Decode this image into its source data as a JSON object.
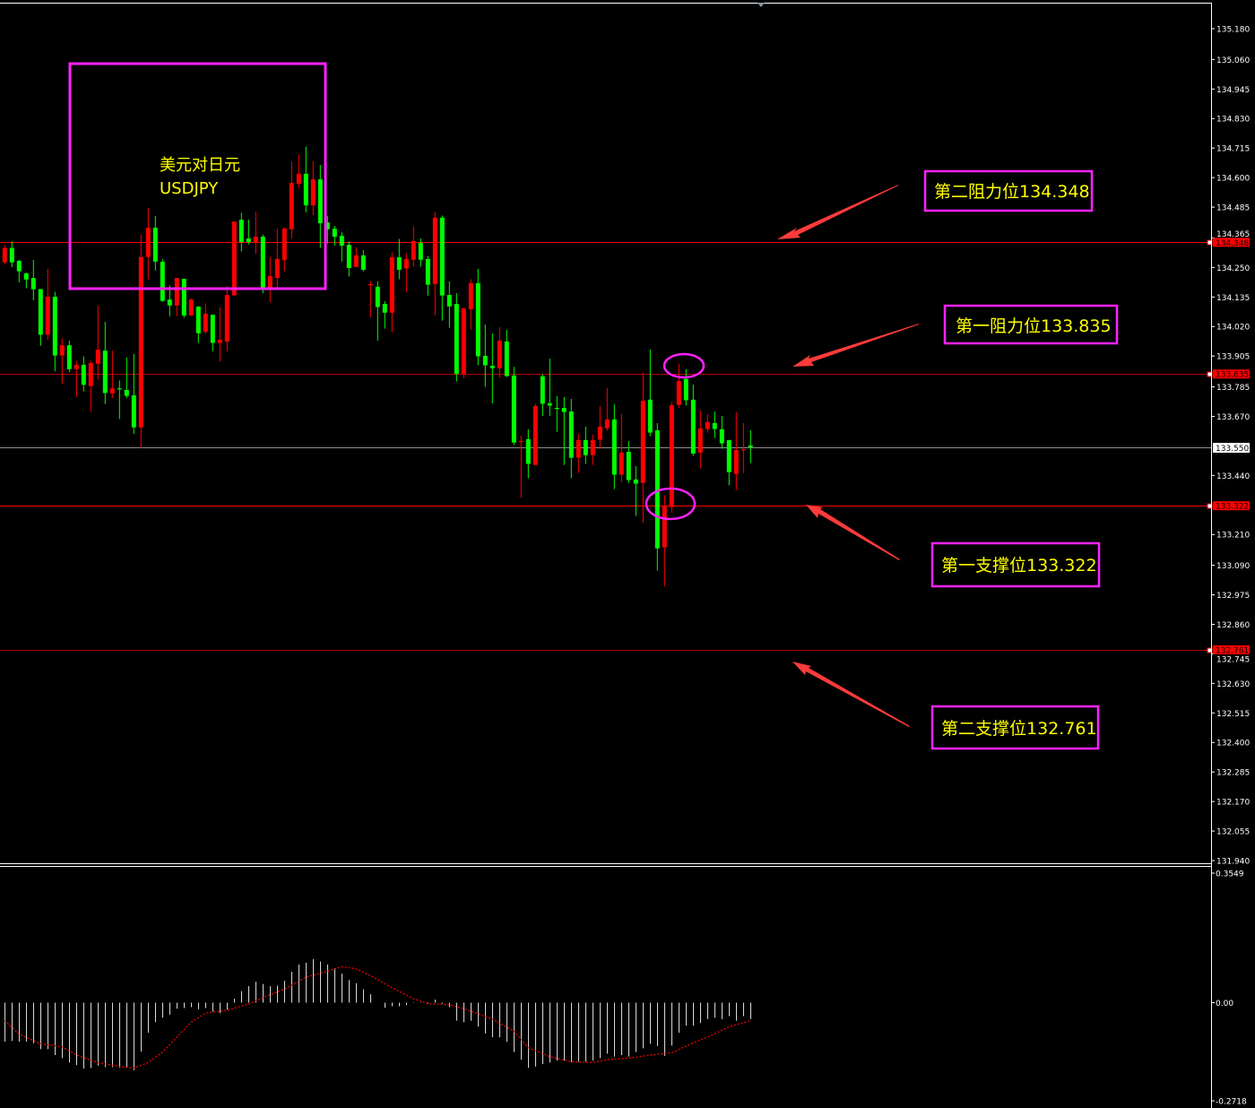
{
  "chart_data": {
    "type": "candlestick",
    "title": "美元对日元",
    "symbol": "USDJPY",
    "colors": {
      "up": "#ff0000",
      "down": "#00ff00",
      "background": "#000000",
      "annotation": "#ff22ff",
      "text": "#ffff00",
      "arrow": "#ff3b3b"
    },
    "price_axis": {
      "range": [
        131.94,
        135.18
      ],
      "ticks": [
        "135.180",
        "135.060",
        "134.945",
        "134.830",
        "134.715",
        "134.600",
        "134.485",
        "134.365",
        "134.250",
        "134.135",
        "134.020",
        "133.905",
        "133.785",
        "133.670",
        "133.440",
        "133.210",
        "133.090",
        "132.975",
        "132.860",
        "132.745",
        "132.630",
        "132.515",
        "132.400",
        "132.285",
        "132.170",
        "132.055",
        "131.940"
      ]
    },
    "current_price": "133.550",
    "levels": [
      {
        "price": 134.348,
        "label": "134.348",
        "annotation": "第二阻力位134.348",
        "style": "solid-red"
      },
      {
        "price": 133.835,
        "label": "133.835",
        "annotation": "第一阻力位133.835",
        "style": "thin-red"
      },
      {
        "price": 133.322,
        "label": "133.322",
        "annotation": "第一支撑位133.322",
        "style": "solid-red"
      },
      {
        "price": 132.761,
        "label": "132.761",
        "annotation": "第二支撑位132.761",
        "style": "thin-red"
      }
    ],
    "candles_ohlc": [
      [
        134.27,
        134.337,
        134.262,
        134.326
      ],
      [
        134.326,
        134.352,
        134.252,
        134.27
      ],
      [
        134.276,
        134.279,
        134.192,
        134.235
      ],
      [
        134.227,
        134.23,
        134.169,
        134.203
      ],
      [
        134.209,
        134.279,
        134.122,
        134.165
      ],
      [
        134.166,
        134.166,
        133.945,
        133.988
      ],
      [
        133.988,
        134.244,
        133.968,
        134.136
      ],
      [
        134.136,
        134.155,
        133.846,
        133.907
      ],
      [
        133.907,
        133.974,
        133.798,
        133.947
      ],
      [
        133.947,
        133.965,
        133.843,
        133.854
      ],
      [
        133.854,
        133.886,
        133.746,
        133.871
      ],
      [
        133.871,
        133.904,
        133.767,
        133.793
      ],
      [
        133.788,
        133.887,
        133.688,
        133.878
      ],
      [
        133.875,
        134.101,
        133.814,
        133.93
      ],
      [
        133.926,
        134.038,
        133.718,
        133.761
      ],
      [
        133.76,
        133.926,
        133.741,
        133.779
      ],
      [
        133.779,
        133.81,
        133.66,
        133.777
      ],
      [
        133.773,
        133.899,
        133.741,
        133.75
      ],
      [
        133.752,
        133.913,
        133.602,
        133.627
      ],
      [
        133.627,
        134.378,
        133.546,
        134.291
      ],
      [
        134.291,
        134.483,
        134.203,
        134.405
      ],
      [
        134.405,
        134.451,
        134.238,
        134.273
      ],
      [
        134.272,
        134.283,
        134.116,
        134.12
      ],
      [
        134.125,
        134.18,
        134.06,
        134.102
      ],
      [
        134.102,
        134.209,
        134.06,
        134.209
      ],
      [
        134.206,
        134.206,
        134.054,
        134.063
      ],
      [
        134.064,
        134.13,
        134.06,
        134.125
      ],
      [
        134.098,
        134.098,
        133.956,
        133.994
      ],
      [
        134.0,
        134.11,
        133.992,
        134.07
      ],
      [
        134.066,
        134.066,
        133.924,
        133.956
      ],
      [
        133.956,
        134.095,
        133.883,
        133.968
      ],
      [
        133.961,
        134.177,
        133.924,
        134.143
      ],
      [
        134.141,
        134.429,
        134.141,
        134.429
      ],
      [
        134.436,
        134.463,
        134.312,
        134.349
      ],
      [
        134.363,
        134.436,
        134.34,
        134.349
      ],
      [
        134.349,
        134.468,
        134.302,
        134.37
      ],
      [
        134.37,
        134.378,
        134.149,
        134.169
      ],
      [
        134.169,
        134.291,
        134.114,
        134.217
      ],
      [
        134.209,
        134.401,
        134.169,
        134.283
      ],
      [
        134.279,
        134.407,
        134.235,
        134.401
      ],
      [
        134.399,
        134.663,
        134.364,
        134.579
      ],
      [
        134.576,
        134.69,
        134.558,
        134.615
      ],
      [
        134.615,
        134.721,
        134.465,
        134.492
      ],
      [
        134.492,
        134.663,
        134.454,
        134.593
      ],
      [
        134.593,
        134.649,
        134.326,
        134.422
      ],
      [
        134.425,
        134.45,
        134.343,
        134.399
      ],
      [
        134.401,
        134.412,
        134.335,
        134.37
      ],
      [
        134.373,
        134.387,
        134.273,
        134.335
      ],
      [
        134.338,
        134.352,
        134.215,
        134.248
      ],
      [
        134.252,
        134.329,
        134.252,
        134.297
      ],
      [
        134.297,
        134.318,
        134.235,
        134.241
      ],
      [
        134.183,
        134.196,
        134.056,
        134.185
      ],
      [
        134.175,
        134.196,
        133.965,
        134.096
      ],
      [
        134.108,
        134.119,
        134.012,
        134.074
      ],
      [
        134.074,
        134.309,
        133.998,
        134.29
      ],
      [
        134.29,
        134.361,
        134.204,
        134.241
      ],
      [
        134.246,
        134.305,
        134.154,
        134.283
      ],
      [
        134.28,
        134.41,
        134.253,
        134.353
      ],
      [
        134.346,
        134.363,
        134.253,
        134.28
      ],
      [
        134.283,
        134.294,
        134.14,
        134.183
      ],
      [
        134.185,
        134.466,
        134.064,
        134.444
      ],
      [
        134.444,
        134.452,
        134.043,
        134.141
      ],
      [
        134.143,
        134.196,
        134.015,
        134.098
      ],
      [
        134.108,
        134.15,
        133.806,
        133.836
      ],
      [
        133.836,
        134.091,
        133.819,
        134.091
      ],
      [
        134.087,
        134.204,
        134.008,
        134.189
      ],
      [
        134.189,
        134.245,
        133.869,
        133.904
      ],
      [
        133.906,
        134.028,
        133.785,
        133.869
      ],
      [
        133.867,
        133.993,
        133.721,
        133.858
      ],
      [
        133.857,
        134.018,
        133.82,
        133.965
      ],
      [
        133.962,
        134.007,
        133.823,
        133.827
      ],
      [
        133.829,
        133.863,
        133.558,
        133.568
      ],
      [
        133.572,
        133.595,
        133.354,
        133.574
      ],
      [
        133.581,
        133.62,
        133.429,
        133.485
      ],
      [
        133.481,
        133.719,
        133.481,
        133.71
      ],
      [
        133.826,
        133.834,
        133.672,
        133.719
      ],
      [
        133.721,
        133.895,
        133.672,
        133.712
      ],
      [
        133.703,
        133.749,
        133.61,
        133.701
      ],
      [
        133.703,
        133.745,
        133.481,
        133.687
      ],
      [
        133.689,
        133.738,
        133.429,
        133.509
      ],
      [
        133.509,
        133.602,
        133.45,
        133.578
      ],
      [
        133.578,
        133.63,
        133.485,
        133.519
      ],
      [
        133.519,
        133.599,
        133.481,
        133.578
      ],
      [
        133.579,
        133.71,
        133.544,
        133.63
      ],
      [
        133.624,
        133.78,
        133.614,
        133.658
      ],
      [
        133.658,
        133.717,
        133.387,
        133.443
      ],
      [
        133.443,
        133.679,
        133.415,
        133.529
      ],
      [
        133.532,
        133.574,
        133.411,
        133.422
      ],
      [
        133.424,
        133.476,
        133.282,
        133.408
      ],
      [
        133.411,
        133.84,
        133.255,
        133.731
      ],
      [
        133.735,
        133.93,
        133.593,
        133.607
      ],
      [
        133.616,
        133.644,
        133.069,
        133.156
      ],
      [
        133.16,
        133.362,
        133.007,
        133.323
      ],
      [
        133.317,
        133.727,
        133.296,
        133.714
      ],
      [
        133.715,
        133.875,
        133.703,
        133.808
      ],
      [
        133.816,
        133.854,
        133.712,
        133.733
      ],
      [
        133.735,
        133.794,
        133.516,
        133.525
      ],
      [
        133.529,
        133.693,
        133.467,
        133.623
      ],
      [
        133.621,
        133.679,
        133.607,
        133.648
      ],
      [
        133.644,
        133.689,
        133.586,
        133.621
      ],
      [
        133.62,
        133.672,
        133.544,
        133.565
      ],
      [
        133.578,
        133.578,
        133.401,
        133.453
      ],
      [
        133.446,
        133.686,
        133.383,
        133.539
      ],
      [
        133.54,
        133.644,
        133.45,
        133.542
      ],
      [
        133.557,
        133.616,
        133.488,
        133.55
      ]
    ],
    "indicator": {
      "type": "MACD",
      "axis_labels": [
        "0.3549",
        "0.00",
        "-0.2718"
      ],
      "range": [
        -0.2718,
        0.3549
      ],
      "histogram": [
        -0.1066,
        -0.1049,
        -0.1066,
        -0.1066,
        -0.1107,
        -0.127,
        -0.127,
        -0.1434,
        -0.1516,
        -0.1639,
        -0.1705,
        -0.1803,
        -0.1787,
        -0.1721,
        -0.1762,
        -0.1762,
        -0.1779,
        -0.1779,
        -0.1844,
        -0.1336,
        -0.082,
        -0.0533,
        -0.041,
        -0.0328,
        -0.0164,
        -0.0148,
        -0.0123,
        -0.018,
        -0.0148,
        -0.0246,
        -0.0287,
        -0.0189,
        0.0107,
        0.0311,
        0.0451,
        0.0574,
        0.0508,
        0.0451,
        0.0467,
        0.0598,
        0.0844,
        0.1041,
        0.109,
        0.1189,
        0.1123,
        0.1041,
        0.0943,
        0.0795,
        0.0615,
        0.0533,
        0.0369,
        0.023,
        0.0,
        -0.0139,
        -0.0098,
        -0.0098,
        -0.0066,
        -0.001,
        -0.001,
        -0.0025,
        0.0082,
        -0.0025,
        -0.0123,
        -0.0492,
        -0.0533,
        -0.0492,
        -0.0656,
        -0.0844,
        -0.0943,
        -0.0943,
        -0.1066,
        -0.1352,
        -0.1557,
        -0.1779,
        -0.1746,
        -0.168,
        -0.1639,
        -0.1582,
        -0.1582,
        -0.1623,
        -0.1615,
        -0.1615,
        -0.1582,
        -0.1516,
        -0.1393,
        -0.1475,
        -0.1434,
        -0.1475,
        -0.1352,
        -0.1246,
        -0.1123,
        -0.1189,
        -0.1451,
        -0.1172,
        -0.082,
        -0.0631,
        -0.0631,
        -0.0557,
        -0.0451,
        -0.041,
        -0.0451,
        -0.0369,
        -0.0492,
        -0.0369,
        -0.0451
      ],
      "signal_points": [
        [
          0,
          -0.0492
        ],
        [
          2,
          -0.0861
        ],
        [
          5,
          -0.1123
        ],
        [
          8,
          -0.1205
        ],
        [
          10,
          -0.1434
        ],
        [
          13,
          -0.1639
        ],
        [
          16,
          -0.1746
        ],
        [
          18,
          -0.1787
        ],
        [
          20,
          -0.1639
        ],
        [
          22,
          -0.1352
        ],
        [
          24,
          -0.0943
        ],
        [
          26,
          -0.0533
        ],
        [
          28,
          -0.0287
        ],
        [
          31,
          -0.0205
        ],
        [
          34,
          -0.0041
        ],
        [
          36,
          0.0139
        ],
        [
          39,
          0.0369
        ],
        [
          42,
          0.0697
        ],
        [
          45,
          0.0861
        ],
        [
          47,
          0.0984
        ],
        [
          49,
          0.0926
        ],
        [
          51,
          0.0738
        ],
        [
          54,
          0.041
        ],
        [
          57,
          0.0107
        ],
        [
          59,
          -0.0025
        ],
        [
          62,
          -0.0057
        ],
        [
          64,
          -0.0164
        ],
        [
          68,
          -0.0451
        ],
        [
          71,
          -0.0779
        ],
        [
          73,
          -0.123
        ],
        [
          76,
          -0.1475
        ],
        [
          79,
          -0.1615
        ],
        [
          82,
          -0.1639
        ],
        [
          84,
          -0.1557
        ],
        [
          87,
          -0.1516
        ],
        [
          90,
          -0.1434
        ],
        [
          93,
          -0.1369
        ],
        [
          95,
          -0.1189
        ],
        [
          98,
          -0.0943
        ],
        [
          101,
          -0.0656
        ],
        [
          104,
          -0.0492
        ]
      ],
      "histogram_color": "#d8d8d8",
      "signal_color": "#ff0000"
    }
  }
}
